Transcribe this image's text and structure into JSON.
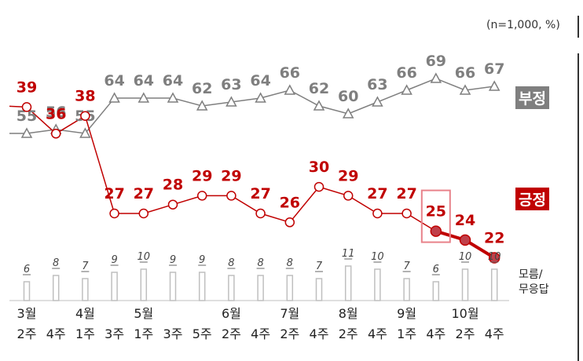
{
  "unit_note": "(n=1,000,  %)",
  "chart_data": {
    "type": "line",
    "x": [
      {
        "month": "3월",
        "week": "2주"
      },
      {
        "month": "",
        "week": "4주"
      },
      {
        "month": "4월",
        "week": "1주"
      },
      {
        "month": "",
        "week": "3주"
      },
      {
        "month": "5월",
        "week": "1주"
      },
      {
        "month": "",
        "week": "3주"
      },
      {
        "month": "",
        "week": "5주"
      },
      {
        "month": "6월",
        "week": "2주"
      },
      {
        "month": "",
        "week": "4주"
      },
      {
        "month": "7월",
        "week": "2주"
      },
      {
        "month": "",
        "week": "4주"
      },
      {
        "month": "8월",
        "week": "2주"
      },
      {
        "month": "",
        "week": "4주"
      },
      {
        "month": "9월",
        "week": "1주"
      },
      {
        "month": "",
        "week": "4주"
      },
      {
        "month": "10월",
        "week": "2주"
      },
      {
        "month": "",
        "week": "4주"
      }
    ],
    "series": [
      {
        "name": "부정",
        "color": "#7f7f7f",
        "values": [
          55,
          56,
          55,
          64,
          64,
          64,
          62,
          63,
          64,
          66,
          62,
          60,
          63,
          66,
          69,
          66,
          67
        ]
      },
      {
        "name": "긍정",
        "color": "#c00000",
        "values": [
          39,
          36,
          38,
          27,
          27,
          28,
          29,
          29,
          27,
          26,
          30,
          29,
          27,
          27,
          25,
          24,
          22
        ]
      },
      {
        "name": "모름/\n무응답",
        "type": "bar",
        "color": "#bfbfbf",
        "values": [
          6,
          8,
          7,
          9,
          10,
          9,
          9,
          8,
          8,
          8,
          7,
          11,
          10,
          7,
          6,
          10,
          10
        ]
      }
    ],
    "highlight_index": 14,
    "grid": false
  },
  "legend": {
    "negative": "부정",
    "positive": "긍정",
    "dk_line1": "모름/",
    "dk_line2": "무응답"
  }
}
